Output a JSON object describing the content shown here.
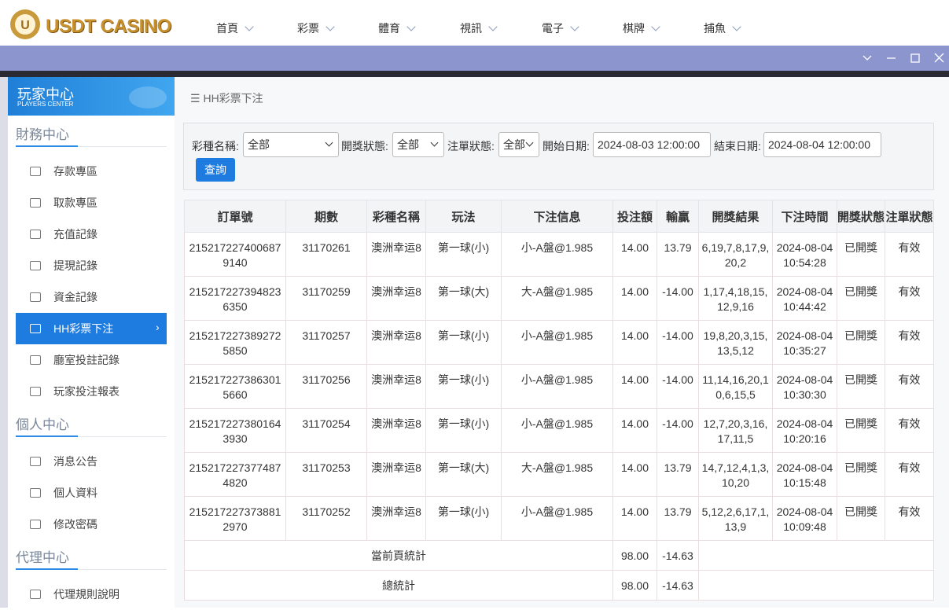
{
  "header": {
    "logo": "USDT CASINO",
    "nav": [
      "首頁",
      "彩票",
      "體育",
      "視訊",
      "電子",
      "棋牌",
      "捕魚"
    ]
  },
  "breadcrumb": "HH彩票下注",
  "sidebar": {
    "title": "玩家中心",
    "subtitle": "PLAYERS CENTER",
    "sections": [
      {
        "title": "財務中心",
        "items": [
          "存款專區",
          "取款專區",
          "充值記錄",
          "提現記錄",
          "資金記錄",
          "HH彩票下注",
          "廳室投註記錄",
          "玩家投注報表"
        ]
      },
      {
        "title": "個人中心",
        "items": [
          "消息公告",
          "個人資料",
          "修改密碼"
        ]
      },
      {
        "title": "代理中心",
        "items": [
          "代理規則說明"
        ]
      }
    ]
  },
  "filters": {
    "fields": [
      {
        "label": "彩種名稱:",
        "value": "全部"
      },
      {
        "label": "開獎狀態:",
        "value": "全部"
      },
      {
        "label": "注單狀態:",
        "value": "全部"
      },
      {
        "label": "開始日期:",
        "value": "2024-08-03 12:00:00"
      },
      {
        "label": "結束日期:",
        "value": "2024-08-04 12:00:00"
      }
    ],
    "button": "查詢"
  },
  "table": {
    "columns": [
      "訂單號",
      "期數",
      "彩種名稱",
      "玩法",
      "下注信息",
      "投注額",
      "輸贏",
      "開獎結果",
      "下注時間",
      "開獎狀態",
      "注單狀態"
    ],
    "rows": [
      [
        "2152172274006879140",
        "31170261",
        "澳洲幸运8",
        "第一球(小)",
        "小-A盤@1.985",
        "14.00",
        "13.79",
        "6,19,7,8,17,9,20,2",
        "2024-08-04 10:54:28",
        "已開獎",
        "有效"
      ],
      [
        "2152172273948236350",
        "31170259",
        "澳洲幸运8",
        "第一球(大)",
        "大-A盤@1.985",
        "14.00",
        "-14.00",
        "1,17,4,18,15,12,9,16",
        "2024-08-04 10:44:42",
        "已開獎",
        "有效"
      ],
      [
        "2152172273892725850",
        "31170257",
        "澳洲幸运8",
        "第一球(小)",
        "小-A盤@1.985",
        "14.00",
        "-14.00",
        "19,8,20,3,15,13,5,12",
        "2024-08-04 10:35:27",
        "已開獎",
        "有效"
      ],
      [
        "2152172273863015660",
        "31170256",
        "澳洲幸运8",
        "第一球(小)",
        "小-A盤@1.985",
        "14.00",
        "-14.00",
        "11,14,16,20,10,6,15,5",
        "2024-08-04 10:30:30",
        "已開獎",
        "有效"
      ],
      [
        "2152172273801643930",
        "31170254",
        "澳洲幸运8",
        "第一球(小)",
        "小-A盤@1.985",
        "14.00",
        "-14.00",
        "12,7,20,3,16,17,11,5",
        "2024-08-04 10:20:16",
        "已開獎",
        "有效"
      ],
      [
        "2152172273774874820",
        "31170253",
        "澳洲幸运8",
        "第一球(大)",
        "大-A盤@1.985",
        "14.00",
        "13.79",
        "14,7,12,4,1,3,10,20",
        "2024-08-04 10:15:48",
        "已開獎",
        "有效"
      ],
      [
        "2152172273738812970",
        "31170252",
        "澳洲幸运8",
        "第一球(小)",
        "小-A盤@1.985",
        "14.00",
        "13.79",
        "5,12,2,6,17,1,13,9",
        "2024-08-04 10:09:48",
        "已開獎",
        "有效"
      ]
    ],
    "summary": [
      {
        "label": "當前頁統計",
        "bet": "98.00",
        "win": "-14.63"
      },
      {
        "label": "總統計",
        "bet": "98.00",
        "win": "-14.63"
      }
    ]
  }
}
